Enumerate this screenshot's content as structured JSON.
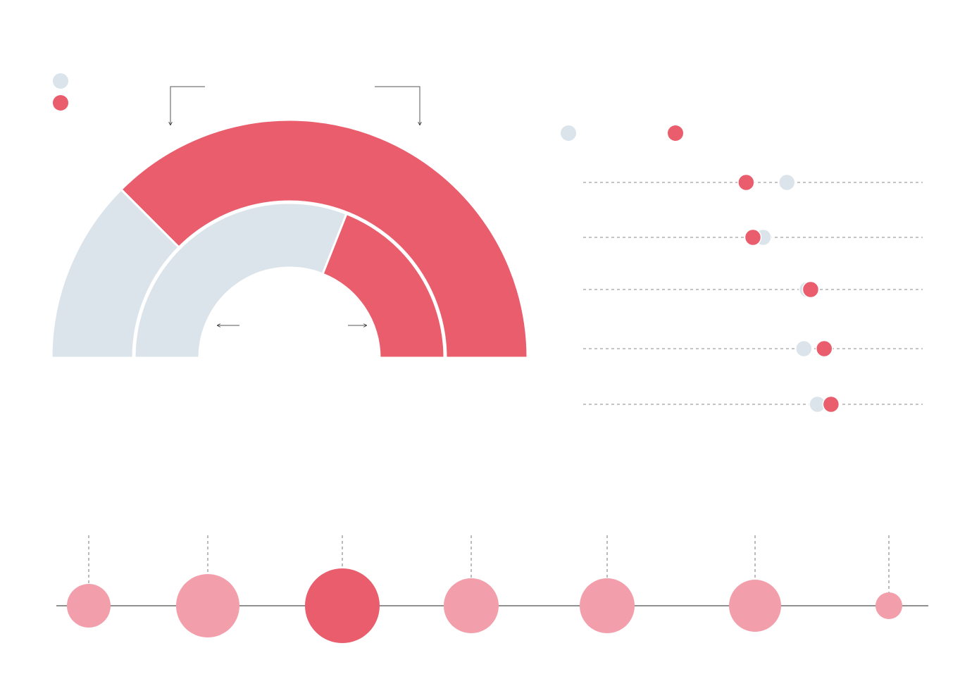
{
  "chart_data": [
    {
      "type": "half-donut",
      "colors": [
        "#dae4ea",
        "#e95d6d"
      ],
      "series": [
        {
          "values": [
            25,
            75
          ]
        },
        {
          "values": [
            62,
            38
          ]
        }
      ]
    },
    {
      "type": "dot",
      "xlim": [
        0,
        100
      ],
      "categories": [
        null,
        null,
        null,
        null,
        null
      ],
      "series": [
        {
          "color": "#dae4ea",
          "values": [
            60,
            53,
            66,
            65,
            69
          ]
        },
        {
          "color": "#e95d6d",
          "values": [
            48,
            50,
            67,
            71,
            73
          ]
        }
      ]
    },
    {
      "type": "bubble",
      "categories": [
        null,
        null,
        null,
        null,
        null,
        null,
        null
      ],
      "values": [
        31,
        45,
        53,
        39,
        39,
        37,
        19
      ],
      "colors": [
        "#f29fab",
        "#f29fab",
        "#e95d6d",
        "#f29fab",
        "#f29fab",
        "#f29fab",
        "#f29fab"
      ]
    }
  ]
}
